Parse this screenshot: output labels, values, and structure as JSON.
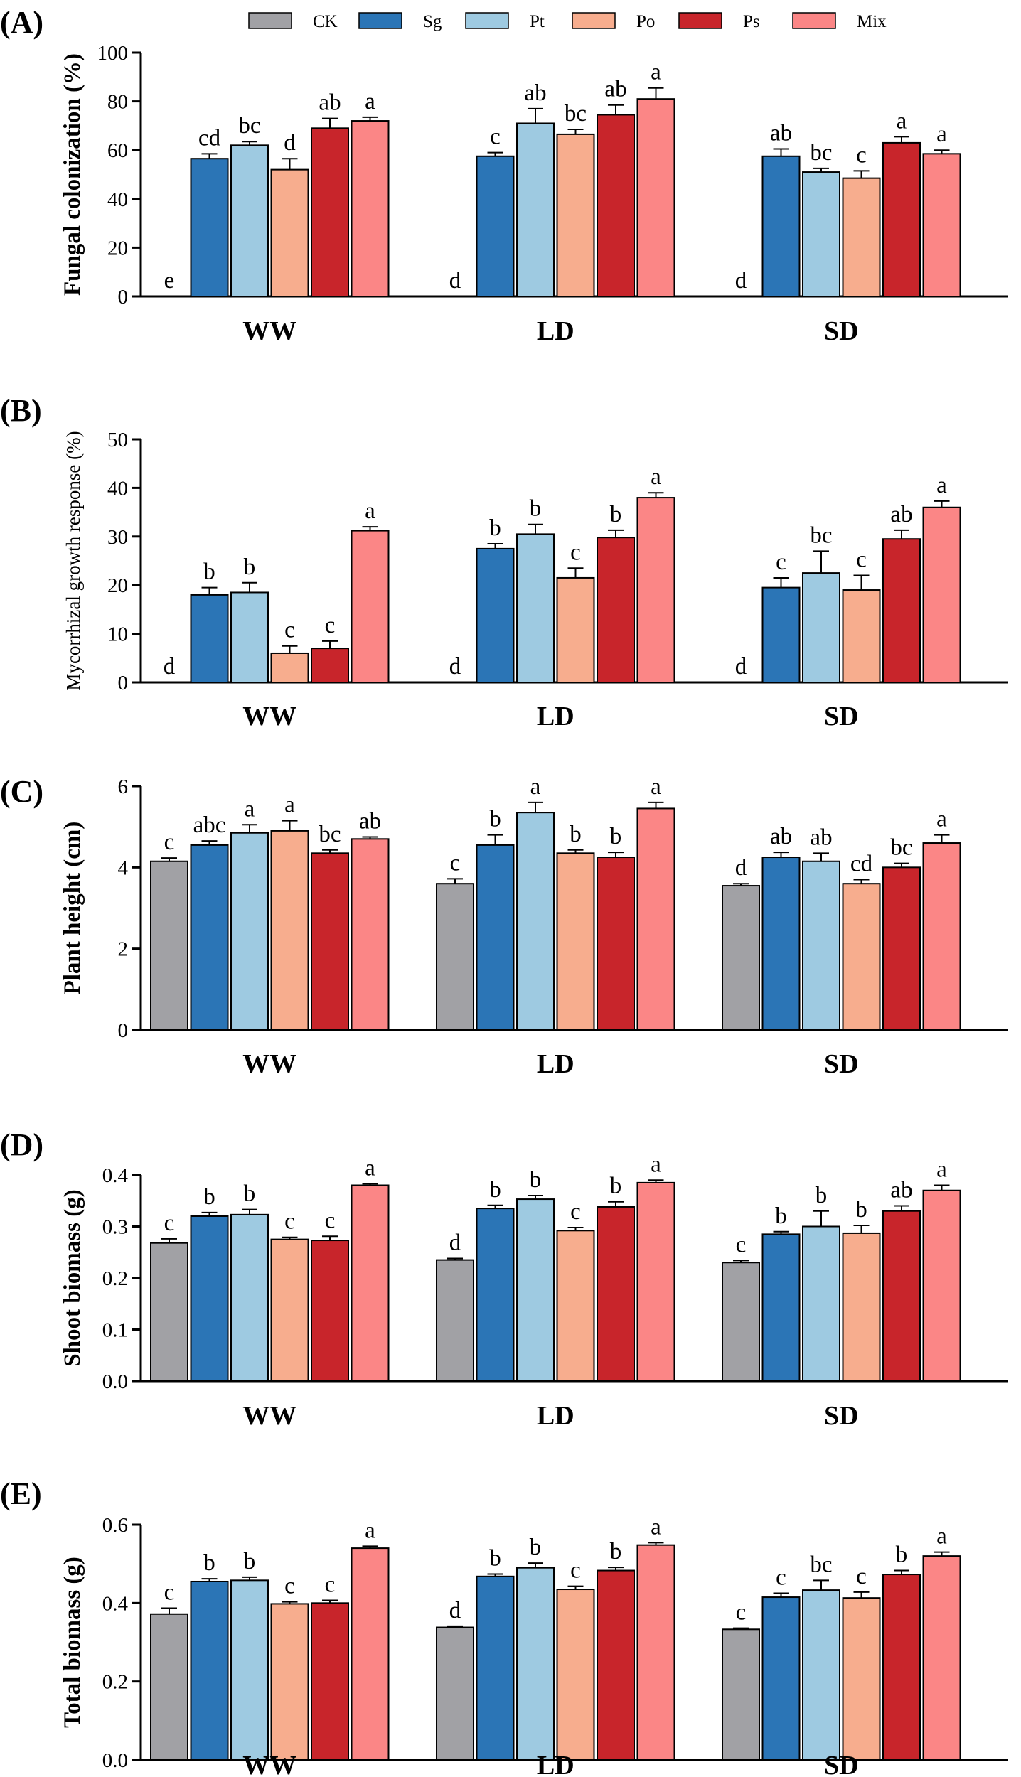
{
  "legend": [
    {
      "name": "CK",
      "color": "#a1a1a5"
    },
    {
      "name": "Sg",
      "color": "#2b75b6"
    },
    {
      "name": "Pt",
      "color": "#9ecae1"
    },
    {
      "name": "Po",
      "color": "#f7ad8e"
    },
    {
      "name": "Ps",
      "color": "#c8252b"
    },
    {
      "name": "Mix",
      "color": "#fb8686"
    }
  ],
  "chart_data": [
    {
      "panel": "(A)",
      "type": "bar",
      "ylabel": "Fungal colonization (%)",
      "ylim": [
        0,
        100
      ],
      "yticks": [
        "0",
        "20",
        "40",
        "60",
        "80",
        "100"
      ],
      "categories": [
        "WW",
        "LD",
        "SD"
      ],
      "series": [
        {
          "name": "CK",
          "values": [
            0,
            0,
            0
          ],
          "errors": [
            0,
            0,
            0
          ],
          "labels": [
            "e",
            "d",
            "d"
          ]
        },
        {
          "name": "Sg",
          "values": [
            56.5,
            57.5,
            57.5
          ],
          "errors": [
            2,
            1.5,
            3
          ],
          "labels": [
            "cd",
            "c",
            "ab"
          ]
        },
        {
          "name": "Pt",
          "values": [
            62,
            71,
            51
          ],
          "errors": [
            1.5,
            6,
            1.5
          ],
          "labels": [
            "bc",
            "ab",
            "bc"
          ]
        },
        {
          "name": "Po",
          "values": [
            52,
            66.5,
            48.5
          ],
          "errors": [
            4.5,
            2,
            3
          ],
          "labels": [
            "d",
            "bc",
            "c"
          ]
        },
        {
          "name": "Ps",
          "values": [
            69,
            74.5,
            63
          ],
          "errors": [
            4,
            4,
            2.5
          ],
          "labels": [
            "ab",
            "ab",
            "a"
          ]
        },
        {
          "name": "Mix",
          "values": [
            72,
            81,
            58.5
          ],
          "errors": [
            1.5,
            4.5,
            1.5
          ],
          "labels": [
            "a",
            "a",
            "a"
          ]
        }
      ]
    },
    {
      "panel": "(B)",
      "type": "bar",
      "ylabel": "Mycorrhizal growth response (%)",
      "ylim": [
        0,
        50
      ],
      "yticks": [
        "0",
        "10",
        "20",
        "30",
        "40",
        "50"
      ],
      "categories": [
        "WW",
        "LD",
        "SD"
      ],
      "series": [
        {
          "name": "CK",
          "values": [
            0,
            0,
            0
          ],
          "errors": [
            0,
            0,
            0
          ],
          "labels": [
            "d",
            "d",
            "d"
          ]
        },
        {
          "name": "Sg",
          "values": [
            18,
            27.5,
            19.5
          ],
          "errors": [
            1.5,
            1,
            2
          ],
          "labels": [
            "b",
            "b",
            "c"
          ]
        },
        {
          "name": "Pt",
          "values": [
            18.5,
            30.5,
            22.5
          ],
          "errors": [
            2,
            2,
            4.5
          ],
          "labels": [
            "b",
            "b",
            "bc"
          ]
        },
        {
          "name": "Po",
          "values": [
            6,
            21.5,
            19
          ],
          "errors": [
            1.5,
            2,
            3
          ],
          "labels": [
            "c",
            "c",
            "c"
          ]
        },
        {
          "name": "Ps",
          "values": [
            7,
            29.8,
            29.5
          ],
          "errors": [
            1.5,
            1.5,
            1.8
          ],
          "labels": [
            "c",
            "b",
            "ab"
          ]
        },
        {
          "name": "Mix",
          "values": [
            31.2,
            38,
            36
          ],
          "errors": [
            0.8,
            1,
            1.3
          ],
          "labels": [
            "a",
            "a",
            "a"
          ]
        }
      ]
    },
    {
      "panel": "(C)",
      "type": "bar",
      "ylabel": "Plant height (cm)",
      "ylim": [
        0,
        6
      ],
      "yticks": [
        "0",
        "2",
        "4",
        "6"
      ],
      "categories": [
        "WW",
        "LD",
        "SD"
      ],
      "series": [
        {
          "name": "CK",
          "values": [
            4.15,
            3.6,
            3.55
          ],
          "errors": [
            0.08,
            0.12,
            0.05
          ],
          "labels": [
            "c",
            "c",
            "d"
          ]
        },
        {
          "name": "Sg",
          "values": [
            4.55,
            4.55,
            4.25
          ],
          "errors": [
            0.1,
            0.25,
            0.12
          ],
          "labels": [
            "abc",
            "b",
            "ab"
          ]
        },
        {
          "name": "Pt",
          "values": [
            4.85,
            5.35,
            4.15
          ],
          "errors": [
            0.2,
            0.25,
            0.2
          ],
          "labels": [
            "a",
            "a",
            "ab"
          ]
        },
        {
          "name": "Po",
          "values": [
            4.9,
            4.35,
            3.6
          ],
          "errors": [
            0.25,
            0.08,
            0.1
          ],
          "labels": [
            "a",
            "b",
            "cd"
          ]
        },
        {
          "name": "Ps",
          "values": [
            4.35,
            4.25,
            4.0
          ],
          "errors": [
            0.08,
            0.12,
            0.1
          ],
          "labels": [
            "bc",
            "b",
            "bc"
          ]
        },
        {
          "name": "Mix",
          "values": [
            4.7,
            5.45,
            4.6
          ],
          "errors": [
            0.05,
            0.15,
            0.2
          ],
          "labels": [
            "ab",
            "a",
            "a"
          ]
        }
      ]
    },
    {
      "panel": "(D)",
      "type": "bar",
      "ylabel": "Shoot biomass (g)",
      "ylim": [
        0,
        0.4
      ],
      "yticks": [
        "0.0",
        "0.1",
        "0.2",
        "0.3",
        "0.4"
      ],
      "categories": [
        "WW",
        "LD",
        "SD"
      ],
      "series": [
        {
          "name": "CK",
          "values": [
            0.268,
            0.235,
            0.23
          ],
          "errors": [
            0.008,
            0.003,
            0.004
          ],
          "labels": [
            "c",
            "d",
            "c"
          ]
        },
        {
          "name": "Sg",
          "values": [
            0.32,
            0.335,
            0.285
          ],
          "errors": [
            0.007,
            0.006,
            0.005
          ],
          "labels": [
            "b",
            "b",
            "b"
          ]
        },
        {
          "name": "Pt",
          "values": [
            0.323,
            0.353,
            0.3
          ],
          "errors": [
            0.01,
            0.007,
            0.03
          ],
          "labels": [
            "b",
            "b",
            "b"
          ]
        },
        {
          "name": "Po",
          "values": [
            0.275,
            0.292,
            0.287
          ],
          "errors": [
            0.004,
            0.006,
            0.015
          ],
          "labels": [
            "c",
            "c",
            "b"
          ]
        },
        {
          "name": "Ps",
          "values": [
            0.273,
            0.338,
            0.33
          ],
          "errors": [
            0.008,
            0.01,
            0.01
          ],
          "labels": [
            "c",
            "b",
            "ab"
          ]
        },
        {
          "name": "Mix",
          "values": [
            0.38,
            0.385,
            0.37
          ],
          "errors": [
            0.003,
            0.005,
            0.01
          ],
          "labels": [
            "a",
            "a",
            "a"
          ]
        }
      ]
    },
    {
      "panel": "(E)",
      "type": "bar",
      "ylabel": "Total biomass (g)",
      "ylim": [
        0,
        0.6
      ],
      "yticks": [
        "0.0",
        "0.2",
        "0.4",
        "0.6"
      ],
      "categories": [
        "WW",
        "LD",
        "SD"
      ],
      "series": [
        {
          "name": "CK",
          "values": [
            0.372,
            0.338,
            0.333
          ],
          "errors": [
            0.015,
            0.003,
            0.003
          ],
          "labels": [
            "c",
            "d",
            "c"
          ]
        },
        {
          "name": "Sg",
          "values": [
            0.455,
            0.468,
            0.415
          ],
          "errors": [
            0.007,
            0.006,
            0.01
          ],
          "labels": [
            "b",
            "b",
            "c"
          ]
        },
        {
          "name": "Pt",
          "values": [
            0.458,
            0.49,
            0.433
          ],
          "errors": [
            0.008,
            0.012,
            0.025
          ],
          "labels": [
            "b",
            "b",
            "bc"
          ]
        },
        {
          "name": "Po",
          "values": [
            0.398,
            0.435,
            0.413
          ],
          "errors": [
            0.005,
            0.008,
            0.015
          ],
          "labels": [
            "c",
            "c",
            "c"
          ]
        },
        {
          "name": "Ps",
          "values": [
            0.4,
            0.483,
            0.473
          ],
          "errors": [
            0.007,
            0.008,
            0.01
          ],
          "labels": [
            "c",
            "b",
            "b"
          ]
        },
        {
          "name": "Mix",
          "values": [
            0.54,
            0.548,
            0.52
          ],
          "errors": [
            0.005,
            0.006,
            0.01
          ],
          "labels": [
            "a",
            "a",
            "a"
          ]
        }
      ]
    }
  ]
}
